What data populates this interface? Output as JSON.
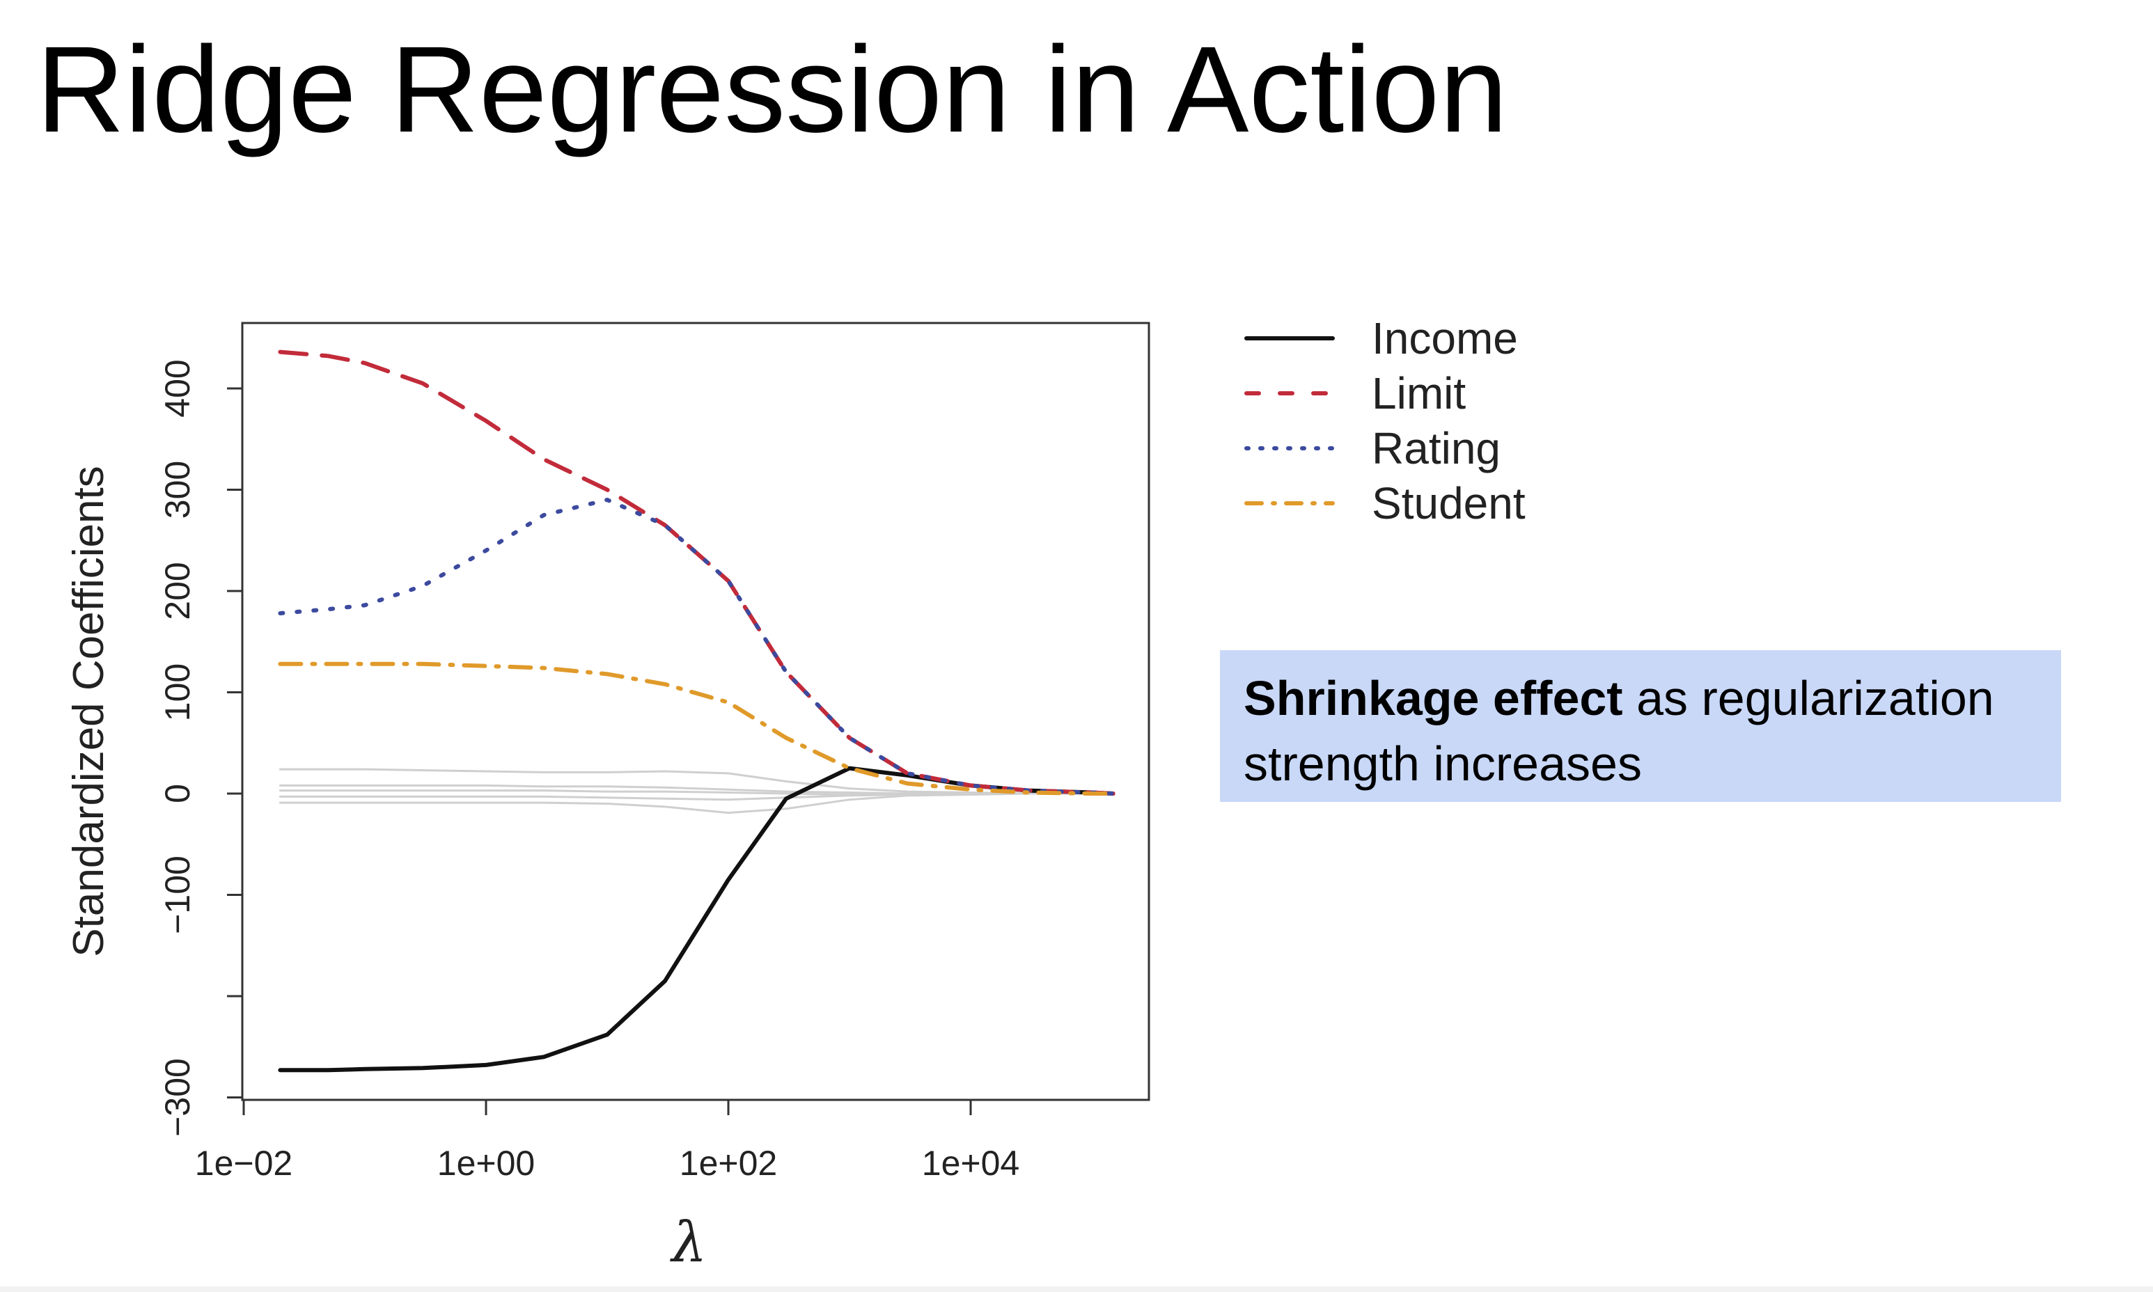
{
  "slide": {
    "title": "Ridge Regression in Action",
    "callout_bold": "Shrinkage effect",
    "callout_rest": " as regularization strength increases",
    "callout_color": "#c9d8f7"
  },
  "chart_data": {
    "type": "line",
    "xlabel": "λ",
    "ylabel": "Standardized Coefficients",
    "x_scale": "log10",
    "xlim": [
      0.01,
      200000
    ],
    "ylim": [
      -300,
      440
    ],
    "x_ticks": [
      0.01,
      1,
      100,
      10000
    ],
    "x_tick_labels": [
      "1e−02",
      "1e+00",
      "1e+02",
      "1e+04"
    ],
    "y_ticks": [
      -300,
      -200,
      -100,
      0,
      100,
      200,
      300,
      400
    ],
    "y_tick_labels": [
      "−300",
      "",
      "−100",
      "0",
      "100",
      "200",
      "300",
      "400"
    ],
    "grid": false,
    "legend_position": "top-right, outside plot",
    "x": [
      0.02,
      0.05,
      0.1,
      0.3,
      1,
      3,
      10,
      30,
      100,
      300,
      1000,
      3000,
      10000,
      30000,
      100000,
      150000
    ],
    "series": [
      {
        "name": "Income",
        "color": "#111111",
        "dash": "solid",
        "values": [
          -273,
          -273,
          -272,
          -271,
          -268,
          -260,
          -238,
          -185,
          -85,
          -5,
          25,
          18,
          8,
          3,
          1,
          0
        ]
      },
      {
        "name": "Limit",
        "color": "#c22b3a",
        "dash": "dashed",
        "values": [
          436,
          432,
          425,
          405,
          368,
          330,
          300,
          265,
          210,
          120,
          55,
          20,
          8,
          3,
          1,
          0
        ]
      },
      {
        "name": "Rating",
        "color": "#3c4a9e",
        "dash": "dotted",
        "values": [
          178,
          182,
          186,
          205,
          240,
          275,
          290,
          265,
          210,
          120,
          55,
          20,
          8,
          3,
          1,
          0
        ]
      },
      {
        "name": "Student",
        "color": "#e09a2a",
        "dash": "dashdot",
        "values": [
          128,
          128,
          128,
          128,
          126,
          124,
          118,
          108,
          90,
          55,
          25,
          10,
          4,
          1,
          0,
          0
        ]
      },
      {
        "color": "#cfcfcf",
        "dash": "solid",
        "values": [
          24,
          24,
          24,
          23,
          22,
          21,
          21,
          22,
          20,
          12,
          5,
          2,
          1,
          0,
          0,
          0
        ]
      },
      {
        "color": "#cfcfcf",
        "dash": "solid",
        "values": [
          8,
          8,
          8,
          8,
          8,
          7,
          7,
          6,
          4,
          2,
          1,
          0,
          0,
          0,
          0,
          0
        ]
      },
      {
        "color": "#cfcfcf",
        "dash": "solid",
        "values": [
          3,
          3,
          3,
          3,
          3,
          3,
          2,
          2,
          1,
          0,
          -1,
          -1,
          0,
          0,
          0,
          0
        ]
      },
      {
        "color": "#cfcfcf",
        "dash": "solid",
        "values": [
          -3,
          -3,
          -3,
          -3,
          -3,
          -3,
          -4,
          -5,
          -6,
          -4,
          -2,
          -1,
          0,
          0,
          0,
          0
        ]
      },
      {
        "color": "#cfcfcf",
        "dash": "solid",
        "values": [
          -9,
          -9,
          -9,
          -9,
          -9,
          -9,
          -10,
          -13,
          -19,
          -15,
          -6,
          -2,
          -1,
          0,
          0,
          0
        ]
      }
    ]
  }
}
